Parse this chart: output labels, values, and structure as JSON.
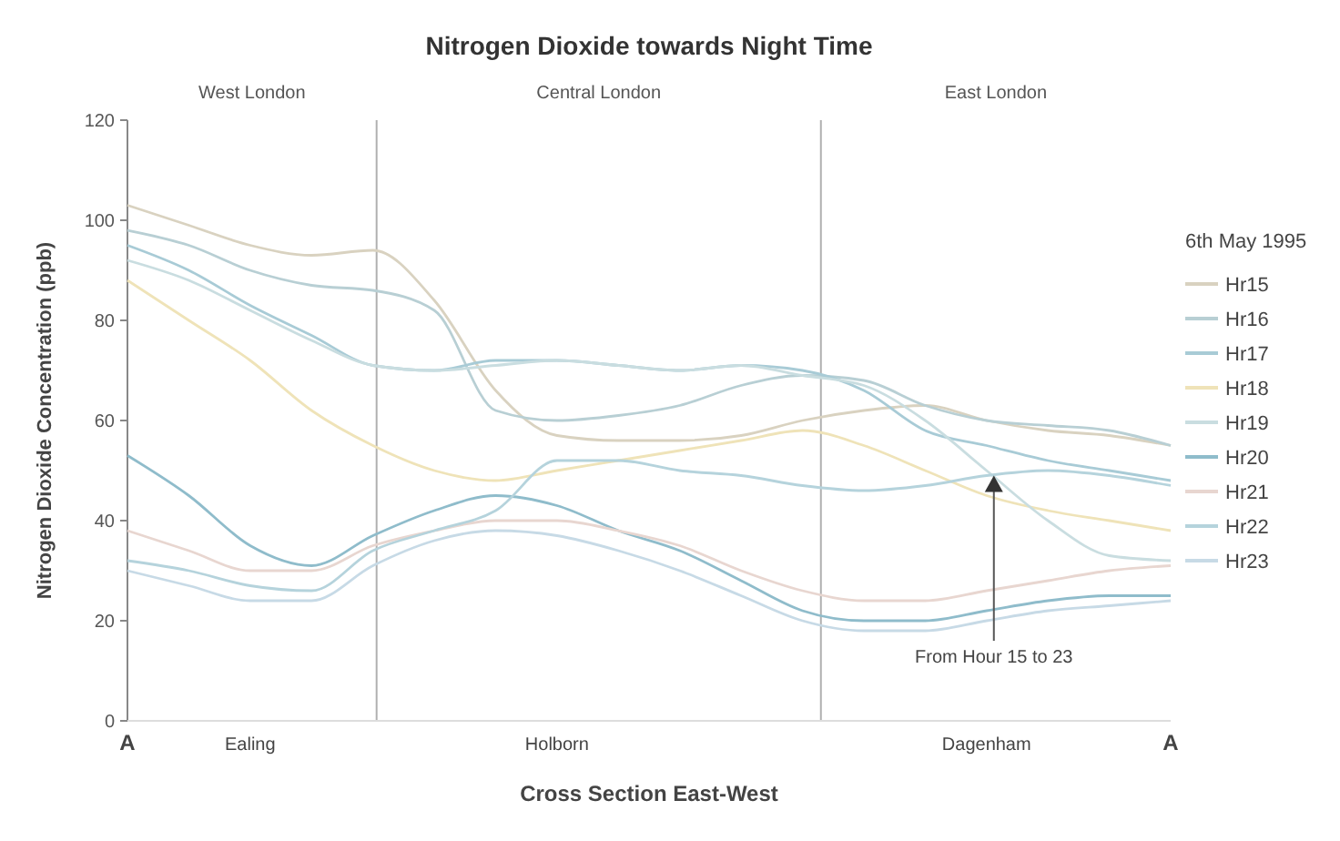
{
  "chart_data": {
    "type": "line",
    "title": "Nitrogen Dioxide towards Night Time",
    "xlabel": "Cross Section East-West",
    "ylabel": "Nitrogen Dioxide Concentration (ppb)",
    "legend_title": "6th May 1995",
    "legend": "right",
    "grid": false,
    "marker": "none",
    "line_style": "solid",
    "categories": [
      "A",
      null,
      "Ealing",
      null,
      null,
      null,
      null,
      "Holborn",
      null,
      null,
      null,
      null,
      null,
      null,
      "Dagenham",
      null,
      null,
      "A"
    ],
    "ylim": [
      0,
      120
    ],
    "yticks": [
      0,
      20,
      40,
      60,
      80,
      100,
      120
    ],
    "annotations": [
      "West London",
      "Central London",
      "East London",
      {
        "text": "From Hour 15 to 23",
        "x": "Dagenham",
        "y": 49
      }
    ],
    "series": [
      {
        "name": "Hr15",
        "color": "#d9d2c0",
        "values": [
          103,
          99,
          95,
          93,
          94,
          84,
          66,
          57,
          56,
          56,
          57,
          60,
          62,
          63,
          60,
          58,
          57,
          55
        ]
      },
      {
        "name": "Hr16",
        "color": "#b8cfd4",
        "values": [
          98,
          95,
          90,
          87,
          86,
          82,
          62,
          60,
          61,
          63,
          67,
          69,
          68,
          63,
          60,
          59,
          58,
          55
        ]
      },
      {
        "name": "Hr17",
        "color": "#a8cbd6",
        "values": [
          95,
          90,
          83,
          77,
          71,
          70,
          72,
          72,
          71,
          70,
          71,
          70,
          66,
          58,
          55,
          52,
          50,
          48
        ]
      },
      {
        "name": "Hr18",
        "color": "#efe3b8",
        "values": [
          88,
          80,
          72,
          62,
          55,
          50,
          48,
          50,
          52,
          54,
          56,
          58,
          55,
          50,
          45,
          42,
          40,
          38
        ]
      },
      {
        "name": "Hr19",
        "color": "#c9dde0",
        "values": [
          92,
          88,
          82,
          76,
          71,
          70,
          71,
          72,
          71,
          70,
          71,
          69,
          67,
          60,
          50,
          40,
          33,
          32
        ]
      },
      {
        "name": "Hr20",
        "color": "#8fbccb",
        "values": [
          53,
          45,
          35,
          31,
          37,
          42,
          45,
          43,
          38,
          34,
          28,
          22,
          20,
          20,
          22,
          24,
          25,
          25
        ]
      },
      {
        "name": "Hr21",
        "color": "#e8d6d0",
        "values": [
          38,
          34,
          30,
          30,
          35,
          38,
          40,
          40,
          38,
          35,
          30,
          26,
          24,
          24,
          26,
          28,
          30,
          31
        ]
      },
      {
        "name": "Hr22",
        "color": "#b5d3dc",
        "values": [
          32,
          30,
          27,
          26,
          34,
          38,
          42,
          52,
          52,
          50,
          49,
          47,
          46,
          47,
          49,
          50,
          49,
          47
        ]
      },
      {
        "name": "Hr23",
        "color": "#c7dae6",
        "values": [
          30,
          27,
          24,
          24,
          31,
          36,
          38,
          37,
          34,
          30,
          25,
          20,
          18,
          18,
          20,
          22,
          23,
          24
        ]
      }
    ]
  }
}
